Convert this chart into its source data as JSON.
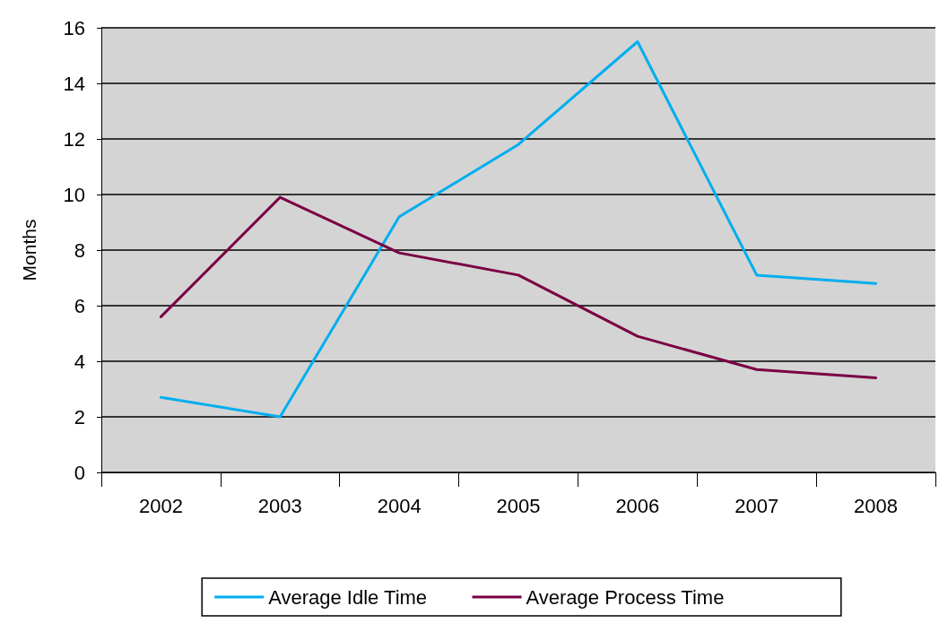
{
  "chart_data": {
    "type": "line",
    "ylabel": "Months",
    "categories": [
      "2002",
      "2003",
      "2004",
      "2005",
      "2006",
      "2007",
      "2008"
    ],
    "series": [
      {
        "name": "Average Idle Time",
        "color": "#00aeef",
        "values": [
          2.7,
          2.0,
          9.2,
          11.8,
          15.5,
          7.1,
          6.8
        ]
      },
      {
        "name": "Average Process Time",
        "color": "#7a0044",
        "values": [
          5.6,
          9.9,
          7.9,
          7.1,
          4.9,
          3.7,
          3.4
        ]
      }
    ],
    "ylim": [
      0,
      16
    ],
    "yticks": [
      0,
      2,
      4,
      6,
      8,
      10,
      12,
      14,
      16
    ],
    "grid": "y",
    "legend": "bottom",
    "marker": "none",
    "line_style": "solid"
  }
}
